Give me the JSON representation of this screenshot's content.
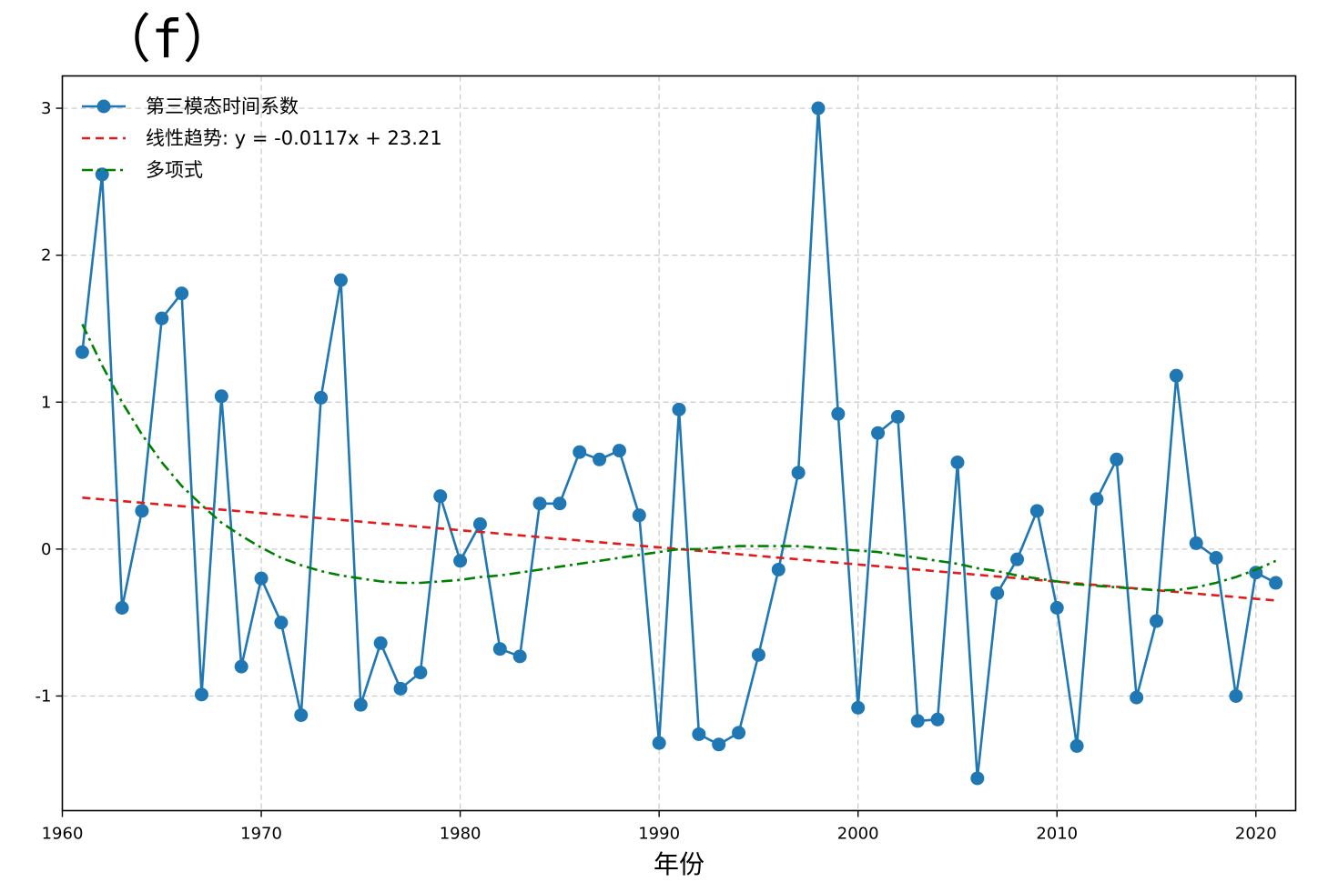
{
  "chart_data": {
    "type": "line",
    "title": "（f）",
    "xlabel": "年份",
    "ylabel": "",
    "xlim": [
      1960,
      2022
    ],
    "ylim": [
      -1.78,
      3.22
    ],
    "xticks": [
      1960,
      1970,
      1980,
      1990,
      2000,
      2010,
      2020
    ],
    "yticks": [
      -1,
      0,
      1,
      2,
      3
    ],
    "ytick_labels": [
      "-1",
      "0",
      "1",
      "2",
      "3"
    ],
    "grid": true,
    "legend_position": "top-left",
    "x": [
      1961,
      1962,
      1963,
      1964,
      1965,
      1966,
      1967,
      1968,
      1969,
      1970,
      1971,
      1972,
      1973,
      1974,
      1975,
      1976,
      1977,
      1978,
      1979,
      1980,
      1981,
      1982,
      1983,
      1984,
      1985,
      1986,
      1987,
      1988,
      1989,
      1990,
      1991,
      1992,
      1993,
      1994,
      1995,
      1996,
      1997,
      1998,
      1999,
      2000,
      2001,
      2002,
      2003,
      2004,
      2005,
      2006,
      2007,
      2008,
      2009,
      2010,
      2011,
      2012,
      2013,
      2014,
      2015,
      2016,
      2017,
      2018,
      2019,
      2020,
      2021
    ],
    "series": [
      {
        "name": "第三模态时间系数",
        "style": "line-marker",
        "color": "#1f77b4",
        "values": [
          1.34,
          2.55,
          -0.4,
          0.26,
          1.57,
          1.74,
          -0.99,
          1.04,
          -0.8,
          -0.2,
          -0.5,
          -1.13,
          1.03,
          1.83,
          -1.06,
          -0.64,
          -0.95,
          -0.84,
          0.36,
          -0.08,
          0.17,
          -0.68,
          -0.73,
          0.31,
          0.31,
          0.66,
          0.61,
          0.67,
          0.23,
          -1.32,
          0.95,
          -1.26,
          -1.33,
          -1.25,
          -0.72,
          -0.14,
          0.52,
          3.0,
          0.92,
          -1.08,
          0.79,
          0.9,
          -1.17,
          -1.16,
          0.59,
          -1.56,
          -0.3,
          -0.07,
          0.26,
          -0.4,
          -1.34,
          0.34,
          0.61,
          -1.01,
          -0.49,
          1.18,
          0.04,
          -0.06,
          -1.0,
          -0.16,
          -0.23
        ]
      },
      {
        "name": "线性趋势: y = -0.0117x + 23.21",
        "style": "dashed",
        "color": "#e31a1c",
        "x": [
          1961,
          2021
        ],
        "values": [
          0.35,
          -0.35
        ]
      },
      {
        "name": "多项式",
        "style": "dashdot",
        "color": "#008000",
        "values": [
          1.53,
          1.25,
          1.0,
          0.78,
          0.59,
          0.43,
          0.3,
          0.18,
          0.09,
          0.01,
          -0.06,
          -0.11,
          -0.15,
          -0.18,
          -0.2,
          -0.22,
          -0.23,
          -0.23,
          -0.22,
          -0.21,
          -0.19,
          -0.18,
          -0.16,
          -0.14,
          -0.12,
          -0.1,
          -0.08,
          -0.06,
          -0.04,
          -0.02,
          0.0,
          0.0,
          0.01,
          0.02,
          0.02,
          0.02,
          0.02,
          0.01,
          0.0,
          -0.01,
          -0.02,
          -0.04,
          -0.06,
          -0.08,
          -0.1,
          -0.13,
          -0.15,
          -0.18,
          -0.2,
          -0.22,
          -0.24,
          -0.25,
          -0.26,
          -0.27,
          -0.28,
          -0.28,
          -0.26,
          -0.23,
          -0.19,
          -0.14,
          -0.08
        ]
      }
    ]
  }
}
